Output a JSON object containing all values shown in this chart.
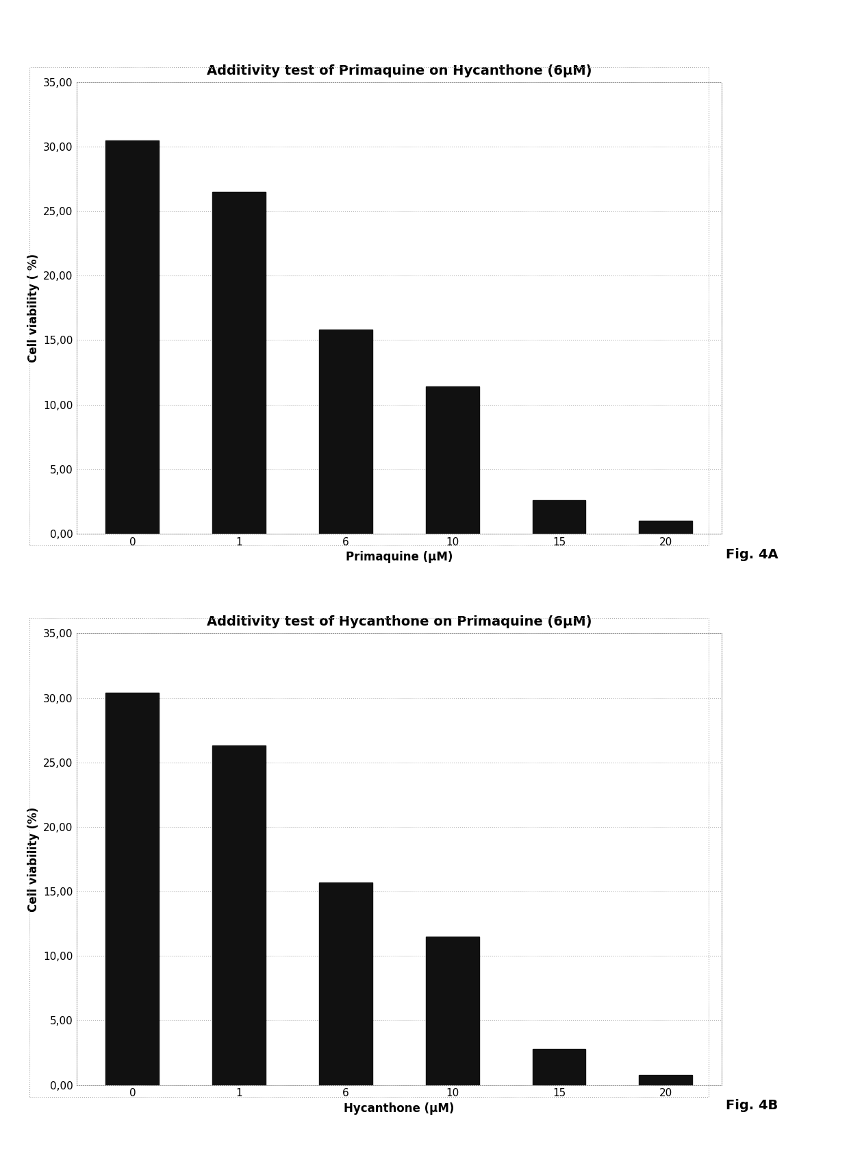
{
  "chart_A": {
    "title": "Additivity test of Primaquine on Hycanthone (6μM)",
    "xlabel": "Primaquine (μM)",
    "ylabel": "Cell viability ( %)",
    "categories": [
      "0",
      "1",
      "6",
      "10",
      "15",
      "20"
    ],
    "values": [
      30.5,
      26.5,
      15.8,
      11.4,
      2.6,
      1.0
    ],
    "ylim": [
      0,
      35
    ],
    "yticks": [
      0.0,
      5.0,
      10.0,
      15.0,
      20.0,
      25.0,
      30.0,
      35.0
    ],
    "ytick_labels": [
      "0,00",
      "5,00",
      "10,00",
      "15,00",
      "20,00",
      "25,00",
      "30,00",
      "35,00"
    ],
    "bar_color": "#111111",
    "fig_label": "Fig. 4A"
  },
  "chart_B": {
    "title": "Additivity test of Hycanthone on Primaquine (6μM)",
    "xlabel": "Hycanthone (μM)",
    "ylabel": "Cell viability (%)",
    "categories": [
      "0",
      "1",
      "6",
      "10",
      "15",
      "20"
    ],
    "values": [
      30.4,
      26.3,
      15.7,
      11.5,
      2.8,
      0.8
    ],
    "ylim": [
      0,
      35
    ],
    "yticks": [
      0.0,
      5.0,
      10.0,
      15.0,
      20.0,
      25.0,
      30.0,
      35.0
    ],
    "ytick_labels": [
      "0,00",
      "5,00",
      "10,00",
      "15,00",
      "20,00",
      "25,00",
      "30,00",
      "35,00"
    ],
    "bar_color": "#111111",
    "fig_label": "Fig. 4B"
  },
  "background_color": "#ffffff",
  "border_color": "#999999",
  "grid_color": "#bbbbbb",
  "title_fontsize": 14,
  "axis_label_fontsize": 12,
  "tick_fontsize": 11,
  "fig_label_fontsize": 14,
  "bar_width": 0.5
}
